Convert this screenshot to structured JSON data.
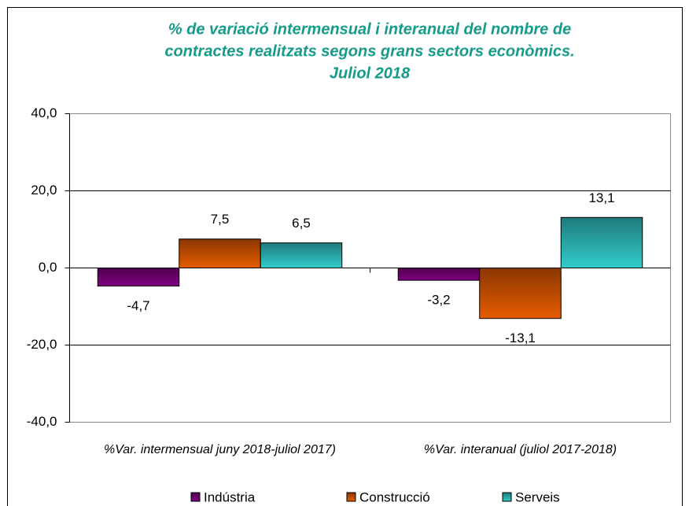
{
  "chart_data": {
    "type": "bar",
    "title": [
      "% de variació intermensual i interanual del nombre de",
      "contractes realitzats segons grans sectors econòmics.",
      "Juliol 2018"
    ],
    "categories": [
      "%Var. intermensual juny 2018-juliol 2017)",
      "%Var. interanual (juliol 2017-2018)"
    ],
    "series": [
      {
        "name": "Indústria",
        "color": "#800080",
        "values": [
          -4.7,
          -3.2
        ],
        "value_labels": [
          "-4,7",
          "-3,2"
        ]
      },
      {
        "name": "Construcció",
        "color": "#e65c00",
        "values": [
          7.5,
          -13.1
        ],
        "value_labels": [
          "7,5",
          "-13,1"
        ]
      },
      {
        "name": "Serveis",
        "color": "#33cccc",
        "values": [
          6.5,
          13.1
        ],
        "value_labels": [
          "6,5",
          "13,1"
        ]
      }
    ],
    "ylim": [
      -40,
      40
    ],
    "yticks": [
      {
        "value": -40,
        "label": "-40,0"
      },
      {
        "value": -20,
        "label": "-20,0"
      },
      {
        "value": 0,
        "label": "0,0"
      },
      {
        "value": 20,
        "label": "20,0"
      },
      {
        "value": 40,
        "label": "40,0"
      }
    ],
    "grid": true
  }
}
